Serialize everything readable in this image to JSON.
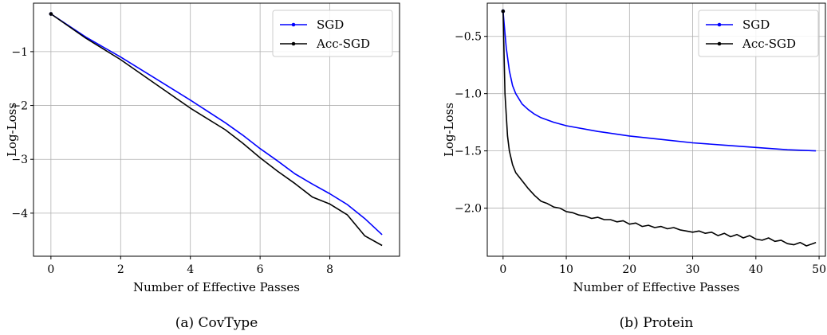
{
  "chart_data": [
    {
      "type": "line",
      "caption": "(a) CovType",
      "xlabel": "Number of Effective Passes",
      "ylabel": "Log-Loss",
      "xlim": [
        -0.5,
        10.0
      ],
      "ylim": [
        -4.8,
        -0.1
      ],
      "xticks": [
        0,
        2,
        4,
        6,
        8
      ],
      "yticks": [
        -1,
        -2,
        -3,
        -4
      ],
      "grid": true,
      "legend_position": "top-right",
      "series": [
        {
          "name": "SGD",
          "color": "#0000ff",
          "x": [
            0,
            1,
            2,
            3,
            4,
            5,
            5.5,
            6,
            6.5,
            7,
            7.5,
            8,
            8.5,
            9,
            9.5
          ],
          "y": [
            -0.3,
            -0.73,
            -1.1,
            -1.5,
            -1.9,
            -2.32,
            -2.55,
            -2.8,
            -3.03,
            -3.27,
            -3.46,
            -3.64,
            -3.84,
            -4.1,
            -4.4
          ]
        },
        {
          "name": "Acc-SGD",
          "color": "#000000",
          "x": [
            0,
            1,
            2,
            3,
            4,
            5,
            5.5,
            6,
            6.5,
            7,
            7.5,
            8,
            8.5,
            9,
            9.5
          ],
          "y": [
            -0.3,
            -0.75,
            -1.15,
            -1.6,
            -2.05,
            -2.45,
            -2.7,
            -2.97,
            -3.22,
            -3.45,
            -3.7,
            -3.83,
            -4.03,
            -4.42,
            -4.6
          ]
        }
      ]
    },
    {
      "type": "line",
      "caption": "(b) Protein",
      "xlabel": "Number of Effective Passes",
      "ylabel": "Log-Loss",
      "xlim": [
        -2.5,
        51.0
      ],
      "ylim": [
        -2.42,
        -0.21
      ],
      "xticks": [
        0,
        10,
        20,
        30,
        40,
        50
      ],
      "yticks": [
        -0.5,
        -1.0,
        -1.5,
        -2.0
      ],
      "grid": true,
      "legend_position": "top-right",
      "series": [
        {
          "name": "SGD",
          "color": "#0000ff",
          "x": [
            0,
            0.5,
            1,
            1.5,
            2,
            3,
            4,
            5,
            6,
            8,
            10,
            15,
            20,
            25,
            30,
            35,
            40,
            45,
            49.5
          ],
          "y": [
            -0.28,
            -0.6,
            -0.8,
            -0.93,
            -1.0,
            -1.09,
            -1.14,
            -1.18,
            -1.21,
            -1.25,
            -1.28,
            -1.33,
            -1.37,
            -1.4,
            -1.43,
            -1.45,
            -1.47,
            -1.49,
            -1.5
          ]
        },
        {
          "name": "Acc-SGD",
          "color": "#000000",
          "x": [
            0,
            0.3,
            0.7,
            1,
            1.5,
            2,
            3,
            4,
            5,
            6,
            7,
            8,
            9,
            10,
            11,
            12,
            13,
            14,
            15,
            16,
            17,
            18,
            19,
            20,
            21,
            22,
            23,
            24,
            25,
            26,
            27,
            28,
            29,
            30,
            31,
            32,
            33,
            34,
            35,
            36,
            37,
            38,
            39,
            40,
            41,
            42,
            43,
            44,
            45,
            46,
            47,
            48,
            49,
            49.5
          ],
          "y": [
            -0.28,
            -1.0,
            -1.37,
            -1.5,
            -1.62,
            -1.69,
            -1.76,
            -1.83,
            -1.89,
            -1.94,
            -1.96,
            -1.99,
            -2.0,
            -2.03,
            -2.04,
            -2.06,
            -2.07,
            -2.09,
            -2.08,
            -2.1,
            -2.1,
            -2.12,
            -2.11,
            -2.14,
            -2.13,
            -2.16,
            -2.15,
            -2.17,
            -2.16,
            -2.18,
            -2.17,
            -2.19,
            -2.2,
            -2.21,
            -2.2,
            -2.22,
            -2.21,
            -2.24,
            -2.22,
            -2.25,
            -2.23,
            -2.26,
            -2.24,
            -2.27,
            -2.28,
            -2.26,
            -2.29,
            -2.28,
            -2.31,
            -2.32,
            -2.3,
            -2.33,
            -2.31,
            -2.3
          ]
        }
      ]
    }
  ]
}
